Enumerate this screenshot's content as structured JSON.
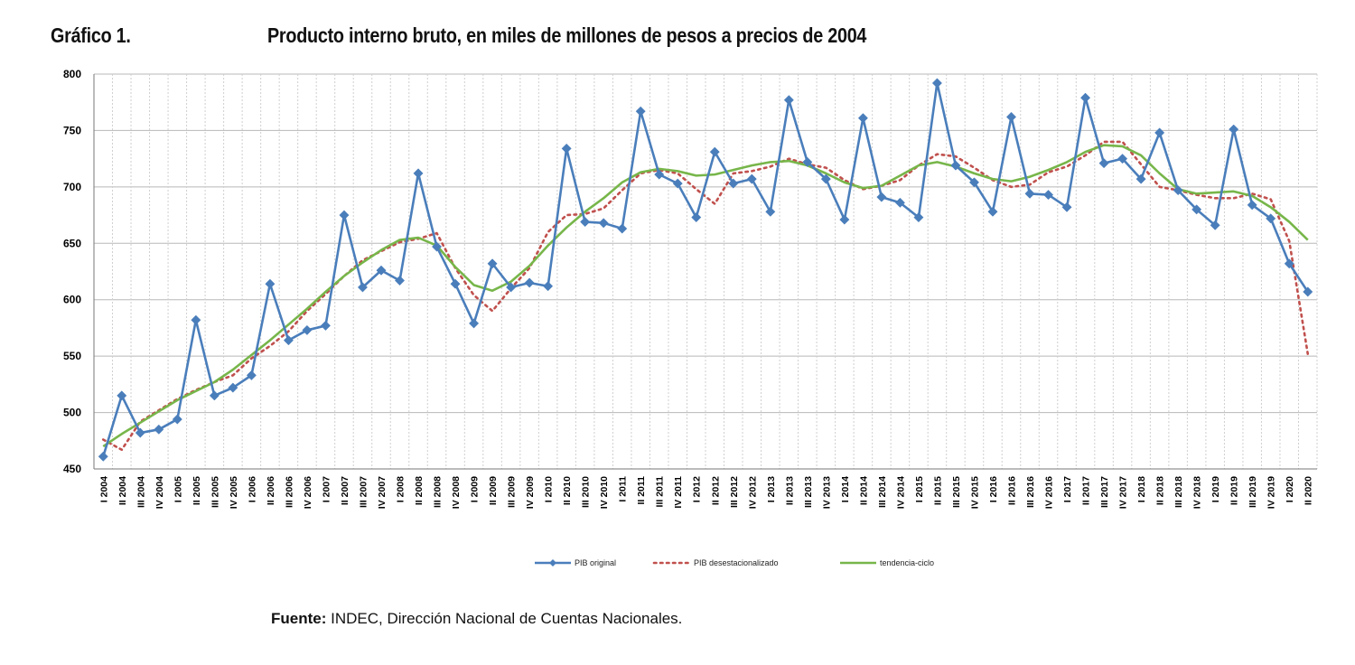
{
  "header": {
    "figure_number": "Gráfico 1.",
    "title": "Producto interno bruto, en miles de millones de pesos a precios de 2004"
  },
  "source": {
    "label": "Fuente:",
    "text": " INDEC, Dirección Nacional de Cuentas Nacionales."
  },
  "chart_data": {
    "type": "line",
    "title": "Producto interno bruto, en miles de millones de pesos a precios de 2004",
    "xlabel": "",
    "ylabel": "",
    "ylim": [
      450,
      800
    ],
    "yticks": [
      450,
      500,
      550,
      600,
      650,
      700,
      750,
      800
    ],
    "grid": true,
    "legend_position": "bottom-center",
    "categories": [
      "I 2004",
      "II 2004",
      "III 2004",
      "IV 2004",
      "I 2005",
      "II 2005",
      "III 2005",
      "IV 2005",
      "I 2006",
      "II 2006",
      "III 2006",
      "IV 2006",
      "I 2007",
      "II 2007",
      "III 2007",
      "IV 2007",
      "I 2008",
      "II 2008",
      "III 2008",
      "IV 2008",
      "I 2009",
      "II 2009",
      "III 2009",
      "IV 2009",
      "I 2010",
      "II 2010",
      "III 2010",
      "IV 2010",
      "I 2011",
      "II 2011",
      "III 2011",
      "IV 2011",
      "I 2012",
      "II 2012",
      "III 2012",
      "IV 2012",
      "I 2013",
      "II 2013",
      "III 2013",
      "IV 2013",
      "I 2014",
      "II 2014",
      "III 2014",
      "IV 2014",
      "I 2015",
      "II 2015",
      "III 2015",
      "IV 2015",
      "I 2016",
      "II 2016",
      "III 2016",
      "IV 2016",
      "I 2017",
      "II 2017",
      "III 2017",
      "IV 2017",
      "I 2018",
      "II 2018",
      "III 2018",
      "IV 2018",
      "I 2019",
      "II 2019",
      "III 2019",
      "IV 2019",
      "I 2020",
      "II 2020"
    ],
    "series": [
      {
        "name": "PIB original",
        "color": "#4A7EBB",
        "style": "solid-diamond",
        "values": [
          461,
          515,
          482,
          485,
          494,
          582,
          515,
          522,
          533,
          614,
          564,
          573,
          577,
          675,
          611,
          626,
          617,
          712,
          647,
          614,
          579,
          632,
          611,
          615,
          612,
          734,
          669,
          668,
          663,
          767,
          711,
          703,
          673,
          731,
          703,
          707,
          678,
          777,
          722,
          707,
          671,
          761,
          691,
          686,
          673,
          792,
          719,
          704,
          678,
          762,
          694,
          693,
          682,
          779,
          721,
          725,
          707,
          748,
          697,
          680,
          666,
          751,
          684,
          672,
          632,
          607
        ]
      },
      {
        "name": "PIB desestacionalizado",
        "color": "#C0504D",
        "style": "dotted",
        "values": [
          476,
          467,
          492,
          502,
          512,
          520,
          527,
          533,
          548,
          559,
          572,
          590,
          605,
          621,
          635,
          643,
          651,
          654,
          659,
          628,
          604,
          590,
          610,
          628,
          660,
          675,
          676,
          681,
          697,
          712,
          715,
          712,
          698,
          685,
          712,
          714,
          718,
          725,
          720,
          717,
          706,
          698,
          701,
          706,
          719,
          729,
          727,
          717,
          706,
          700,
          702,
          713,
          718,
          728,
          740,
          740,
          720,
          700,
          697,
          693,
          690,
          690,
          694,
          689,
          652,
          552
        ]
      },
      {
        "name": "tendencia-ciclo",
        "color": "#77B64A",
        "style": "solid",
        "values": [
          470,
          481,
          491,
          501,
          511,
          519,
          527,
          538,
          551,
          564,
          578,
          592,
          607,
          621,
          633,
          644,
          653,
          655,
          648,
          629,
          613,
          608,
          616,
          630,
          648,
          664,
          678,
          690,
          704,
          713,
          716,
          714,
          710,
          711,
          715,
          719,
          722,
          723,
          719,
          712,
          704,
          699,
          701,
          710,
          719,
          722,
          718,
          712,
          707,
          705,
          709,
          715,
          722,
          731,
          737,
          736,
          728,
          712,
          698,
          694,
          695,
          696,
          692,
          682,
          669,
          653
        ]
      }
    ]
  }
}
